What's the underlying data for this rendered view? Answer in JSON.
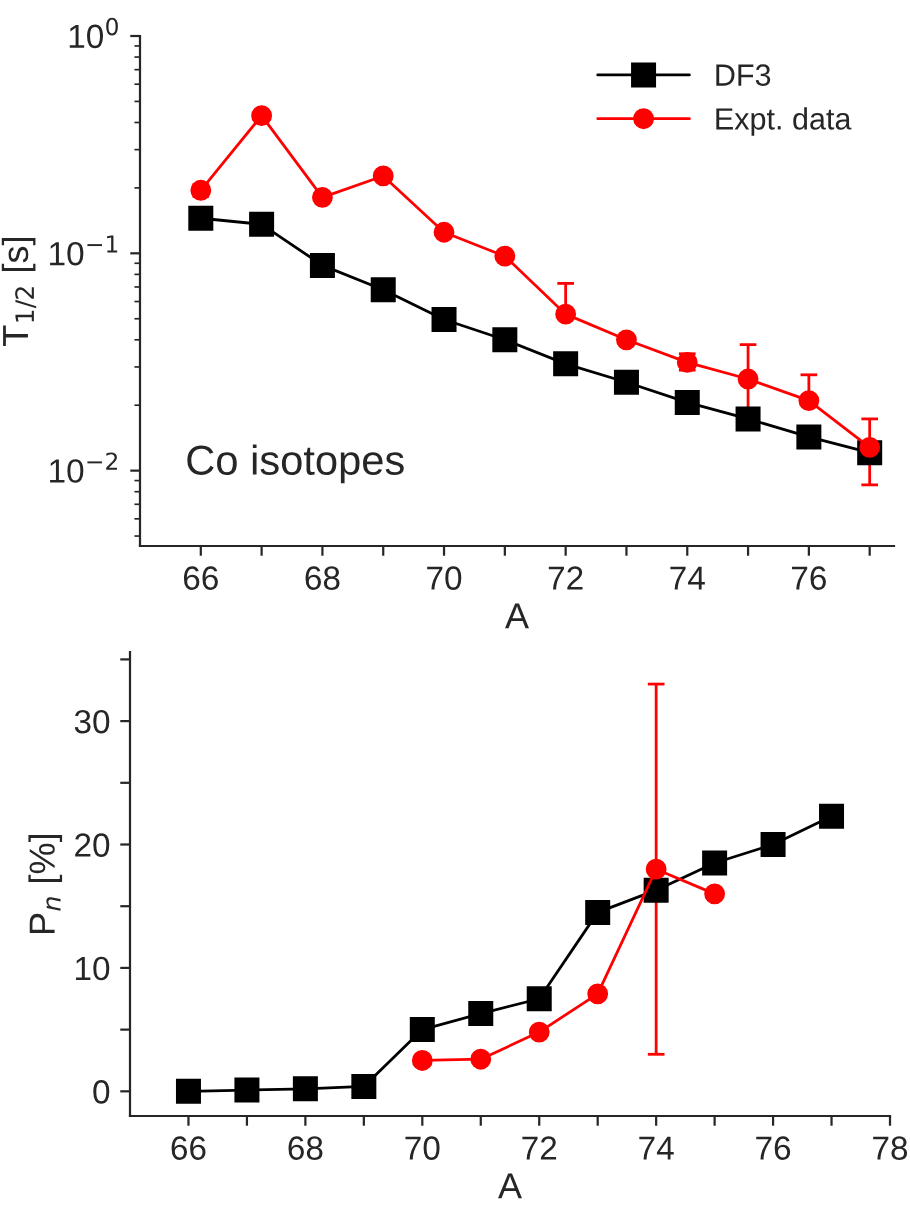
{
  "chart_data": [
    {
      "type": "line",
      "xlabel": "A",
      "ylabel": "T$_{1/2}$ [s]",
      "log": "y",
      "legend": "top right",
      "grid": false,
      "xlim": [
        65,
        77.4
      ],
      "xticks": [
        66,
        {
          "value": 67,
          "label": null
        },
        68,
        {
          "value": 69,
          "label": null
        },
        70,
        {
          "value": 71,
          "label": null
        },
        72,
        {
          "value": 73,
          "label": null
        },
        74,
        {
          "value": 75,
          "label": null
        },
        76,
        {
          "value": 77,
          "label": null
        }
      ],
      "ylim": [
        0.0045,
        1
      ],
      "yticks": [
        {
          "value": 0.01,
          "label": "10$^{−2}$"
        },
        {
          "value": 0.1,
          "label": "10$^{−1}$"
        },
        {
          "value": 1,
          "label": "10$^{0}$"
        }
      ],
      "annotations": [
        "Co isotopes"
      ],
      "series": [
        {
          "name": "DF3",
          "color": "#000000",
          "marker": "square",
          "x": [
            66,
            67,
            68,
            69,
            70,
            71,
            72,
            73,
            74,
            75,
            76,
            77
          ],
          "values": [
            0.145,
            0.136,
            0.088,
            0.068,
            0.0496,
            0.04,
            0.031,
            0.0255,
            0.0206,
            0.0173,
            0.0143,
            0.0121
          ]
        },
        {
          "name": "Expt. data",
          "color": "#ff0000",
          "marker": "circle",
          "x": [
            66,
            67,
            68,
            69,
            70,
            71,
            72,
            73,
            74,
            75,
            76,
            77
          ],
          "values": [
            0.195,
            0.43,
            0.181,
            0.227,
            0.125,
            0.097,
            0.0525,
            0.04,
            0.0315,
            0.0264,
            0.021,
            0.0128
          ],
          "errors": [
            [
              0.183,
              0.207
            ],
            null,
            null,
            null,
            null,
            null,
            [
              0.0525,
              0.0727
            ],
            null,
            [
              0.029,
              0.0345
            ],
            [
              0.0156,
              0.038
            ],
            [
              0.021,
              0.0276
            ],
            [
              0.0086,
              0.0173
            ]
          ]
        }
      ]
    },
    {
      "type": "line",
      "xlabel": "A",
      "ylabel": "P$_{n}$ [%]",
      "grid": false,
      "xlim": [
        65,
        78
      ],
      "xticks": [
        66,
        {
          "value": 67,
          "label": null
        },
        68,
        {
          "value": 69,
          "label": null
        },
        70,
        {
          "value": 71,
          "label": null
        },
        72,
        {
          "value": 73,
          "label": null
        },
        74,
        {
          "value": 75,
          "label": null
        },
        76,
        {
          "value": 77,
          "label": null
        },
        78
      ],
      "ylim": [
        -2,
        35.6
      ],
      "yticks": [
        0,
        {
          "value": 5,
          "label": null
        },
        10,
        {
          "value": 15,
          "label": null
        },
        20,
        {
          "value": 25,
          "label": null
        },
        30,
        {
          "value": 35,
          "label": null
        }
      ],
      "series": [
        {
          "color": "#000000",
          "marker": "square",
          "x": [
            66,
            67,
            68,
            69,
            70,
            71,
            72,
            73,
            74,
            75,
            76,
            77
          ],
          "values": [
            0,
            0.1,
            0.2,
            0.4,
            5.0,
            6.3,
            7.5,
            14.5,
            16.3,
            18.5,
            20,
            22.3
          ]
        },
        {
          "color": "#ff0000",
          "marker": "circle",
          "x": [
            70,
            71,
            72,
            73,
            74,
            75
          ],
          "values": [
            2.5,
            2.6,
            4.8,
            7.9,
            18,
            16
          ],
          "errors": [
            null,
            null,
            null,
            null,
            [
              3.0,
              33.0
            ],
            null
          ]
        }
      ]
    }
  ]
}
